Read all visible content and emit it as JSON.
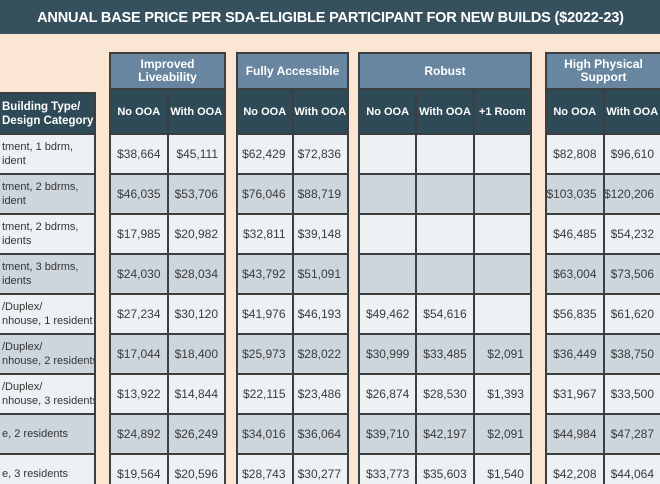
{
  "title": "ANNUAL BASE PRICE PER SDA-ELIGIBLE PARTICIPANT FOR NEW BUILDS ($2022-23)",
  "colors": {
    "page_bg": "#FAE6D2",
    "title_bg": "#36505D",
    "sub_bg": "#2F4A57",
    "group_bg": "#68869F",
    "row_light": "#EDF1F4",
    "row_shade": "#CDD6DD",
    "border": "#3C3E40",
    "value_ink": "#3B3B3B"
  },
  "row_header": {
    "line1": "Building Type/",
    "line2": "Design Category"
  },
  "row_labels": [
    [
      "tment, 1 bdrm,",
      "ident"
    ],
    [
      "tment, 2 bdrms,",
      "ident"
    ],
    [
      "tment, 2 bdrms,",
      "idents"
    ],
    [
      "tment, 3 bdrms,",
      "idents"
    ],
    [
      "/Duplex/",
      "nhouse, 1 resident"
    ],
    [
      "/Duplex/",
      "nhouse, 2 residents"
    ],
    [
      "/Duplex/",
      "nhouse, 3 residents"
    ],
    [
      "e, 2 residents"
    ],
    [
      "e, 3 residents"
    ]
  ],
  "groups": [
    {
      "name": "Improved Liveability",
      "columns": [
        "No OOA",
        "With OOA"
      ],
      "rows": [
        [
          "$38,664",
          "$45,111"
        ],
        [
          "$46,035",
          "$53,706"
        ],
        [
          "$17,985",
          "$20,982"
        ],
        [
          "$24,030",
          "$28,034"
        ],
        [
          "$27,234",
          "$30,120"
        ],
        [
          "$17,044",
          "$18,400"
        ],
        [
          "$13,922",
          "$14,844"
        ],
        [
          "$24,892",
          "$26,249"
        ],
        [
          "$19,564",
          "$20,596"
        ]
      ]
    },
    {
      "name": "Fully Accessible",
      "columns": [
        "No OOA",
        "With OOA"
      ],
      "rows": [
        [
          "$62,429",
          "$72,836"
        ],
        [
          "$76,046",
          "$88,719"
        ],
        [
          "$32,811",
          "$39,148"
        ],
        [
          "$43,792",
          "$51,091"
        ],
        [
          "$41,976",
          "$46,193"
        ],
        [
          "$25,973",
          "$28,022"
        ],
        [
          "$22,115",
          "$23,486"
        ],
        [
          "$34,016",
          "$36,064"
        ],
        [
          "$28,743",
          "$30,277"
        ]
      ]
    },
    {
      "name": "Robust",
      "columns": [
        "No OOA",
        "With OOA",
        "+1 Room"
      ],
      "rows": [
        [
          "",
          "",
          ""
        ],
        [
          "",
          "",
          ""
        ],
        [
          "",
          "",
          ""
        ],
        [
          "",
          "",
          ""
        ],
        [
          "$49,462",
          "$54,616",
          ""
        ],
        [
          "$30,999",
          "$33,485",
          "$2,091"
        ],
        [
          "$26,874",
          "$28,530",
          "$1,393"
        ],
        [
          "$39,710",
          "$42,197",
          "$2,091"
        ],
        [
          "$33,773",
          "$35,603",
          "$1,540"
        ]
      ]
    },
    {
      "name": "High Physical Support",
      "columns": [
        "No OOA",
        "With OOA"
      ],
      "rows": [
        [
          "$82,808",
          "$96,610"
        ],
        [
          "$103,035",
          "$120,206"
        ],
        [
          "$46,485",
          "$54,232"
        ],
        [
          "$63,004",
          "$73,506"
        ],
        [
          "$56,835",
          "$61,620"
        ],
        [
          "$36,449",
          "$38,750"
        ],
        [
          "$31,967",
          "$33,500"
        ],
        [
          "$44,984",
          "$47,287"
        ],
        [
          "$42,208",
          "$44,064"
        ]
      ]
    }
  ]
}
